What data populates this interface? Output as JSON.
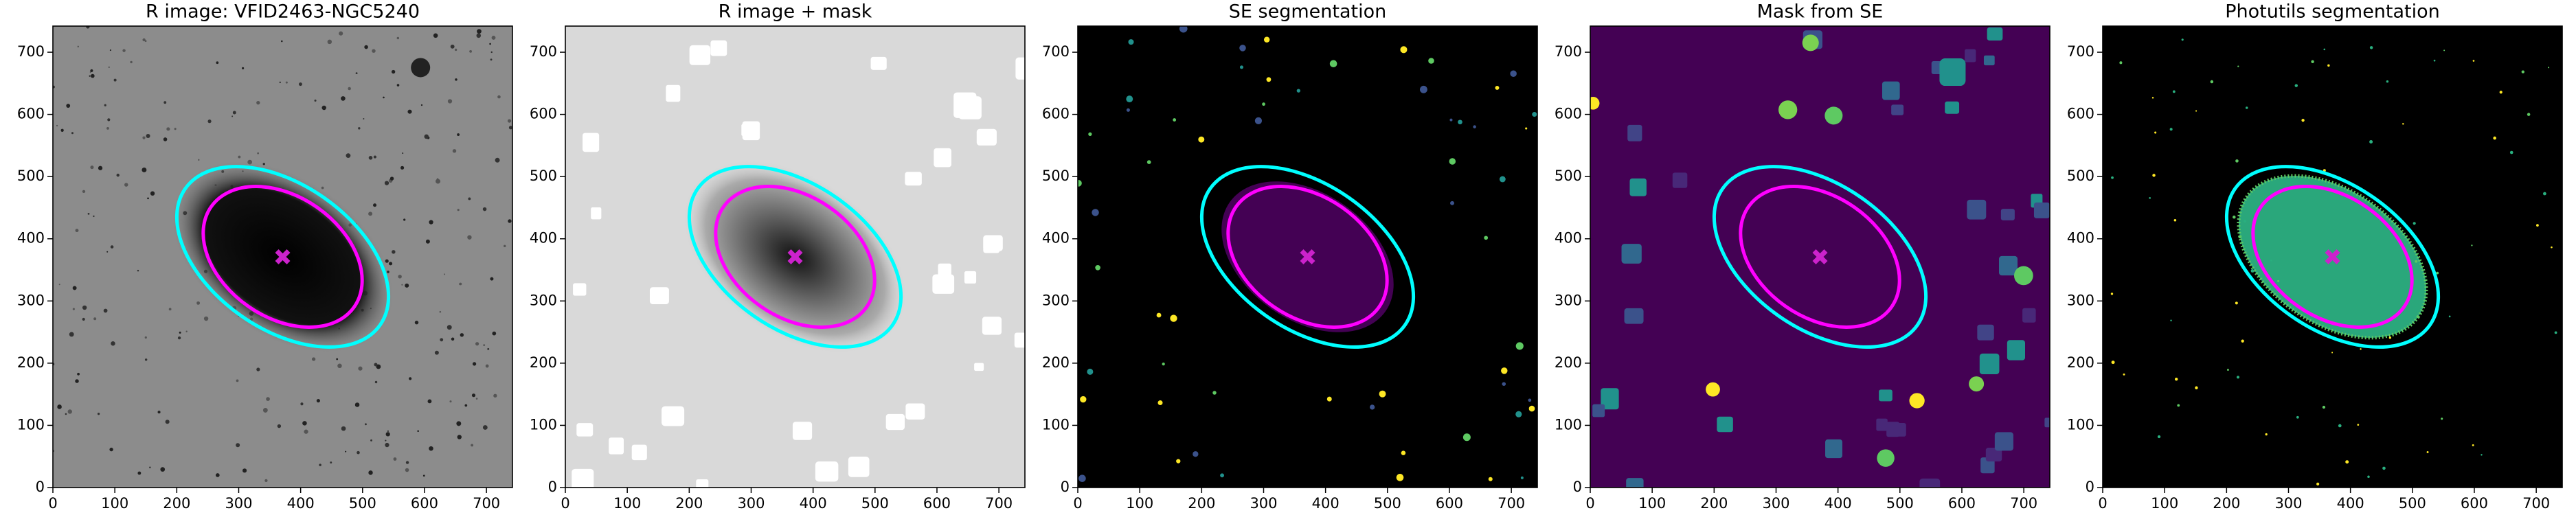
{
  "chart_data": [
    {
      "type": "image",
      "style": "sky",
      "title": "R image: VFID2463-NGC5240",
      "background": "#8c8c8c",
      "xlim": [
        0,
        742
      ],
      "ylim": [
        0,
        742
      ],
      "xticks": [
        0,
        100,
        200,
        300,
        400,
        500,
        600,
        700
      ],
      "yticks": [
        0,
        100,
        200,
        300,
        400,
        500,
        600,
        700
      ],
      "marker": {
        "x": 371,
        "y": 371,
        "color": "#cc22cc"
      },
      "ellipses": [
        {
          "a": 192,
          "b": 116,
          "angle": -35,
          "color": "#00ffff"
        },
        {
          "a": 141,
          "b": 97,
          "angle": -35,
          "color": "#ff00ff"
        }
      ]
    },
    {
      "type": "image",
      "style": "masked",
      "title": "R image + mask",
      "background": "#d9d9d9",
      "xlim": [
        0,
        742
      ],
      "ylim": [
        0,
        742
      ],
      "xticks": [
        0,
        100,
        200,
        300,
        400,
        500,
        600,
        700
      ],
      "yticks": [
        0,
        100,
        200,
        300,
        400,
        500,
        600,
        700
      ],
      "marker": {
        "x": 371,
        "y": 371,
        "color": "#cc22cc"
      },
      "ellipses": [
        {
          "a": 192,
          "b": 116,
          "angle": -35,
          "color": "#00ffff"
        },
        {
          "a": 141,
          "b": 97,
          "angle": -35,
          "color": "#ff00ff"
        }
      ]
    },
    {
      "type": "image",
      "style": "segmentation",
      "title": "SE segmentation",
      "background": "#000000",
      "xlim": [
        0,
        742
      ],
      "ylim": [
        0,
        742
      ],
      "xticks": [
        0,
        100,
        200,
        300,
        400,
        500,
        600,
        700
      ],
      "yticks": [
        0,
        100,
        200,
        300,
        400,
        500,
        600,
        700
      ],
      "marker": {
        "x": 371,
        "y": 371,
        "color": "#cc22cc"
      },
      "ellipses": [
        {
          "a": 192,
          "b": 116,
          "angle": -35,
          "color": "#00ffff"
        },
        {
          "a": 141,
          "b": 97,
          "angle": -35,
          "color": "#ff00ff"
        }
      ]
    },
    {
      "type": "image",
      "style": "mask",
      "title": "Mask from SE",
      "background": "#440154",
      "xlim": [
        0,
        742
      ],
      "ylim": [
        0,
        742
      ],
      "xticks": [
        0,
        100,
        200,
        300,
        400,
        500,
        600,
        700
      ],
      "yticks": [
        0,
        100,
        200,
        300,
        400,
        500,
        600,
        700
      ],
      "marker": {
        "x": 371,
        "y": 371,
        "color": "#cc22cc"
      },
      "ellipses": [
        {
          "a": 192,
          "b": 116,
          "angle": -35,
          "color": "#00ffff"
        },
        {
          "a": 141,
          "b": 97,
          "angle": -35,
          "color": "#ff00ff"
        }
      ]
    },
    {
      "type": "image",
      "style": "photutils",
      "title": "Photutils segmentation",
      "background": "#000000",
      "xlim": [
        0,
        742
      ],
      "ylim": [
        0,
        742
      ],
      "xticks": [
        0,
        100,
        200,
        300,
        400,
        500,
        600,
        700
      ],
      "yticks": [
        0,
        100,
        200,
        300,
        400,
        500,
        600,
        700
      ],
      "marker": {
        "x": 371,
        "y": 371,
        "color": "#cc22cc"
      },
      "ellipses": [
        {
          "a": 192,
          "b": 116,
          "angle": -35,
          "color": "#00ffff"
        },
        {
          "a": 141,
          "b": 97,
          "angle": -35,
          "color": "#ff00ff"
        }
      ]
    }
  ]
}
